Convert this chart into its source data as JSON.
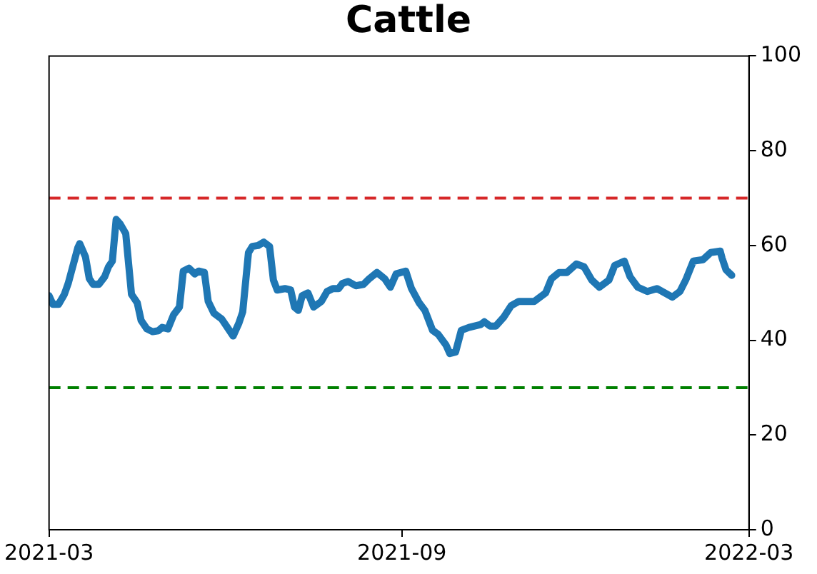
{
  "chart_data": {
    "type": "line",
    "title": "Cattle",
    "x": [
      "2021-03-01",
      "2021-03-03",
      "2021-03-06",
      "2021-03-09",
      "2021-03-11",
      "2021-03-13",
      "2021-03-16",
      "2021-03-17",
      "2021-03-20",
      "2021-03-22",
      "2021-03-24",
      "2021-03-27",
      "2021-03-30",
      "2021-04-01",
      "2021-04-03",
      "2021-04-05",
      "2021-04-07",
      "2021-04-10",
      "2021-04-13",
      "2021-04-16",
      "2021-04-18",
      "2021-04-21",
      "2021-04-24",
      "2021-04-27",
      "2021-04-29",
      "2021-05-02",
      "2021-05-05",
      "2021-05-08",
      "2021-05-10",
      "2021-05-13",
      "2021-05-16",
      "2021-05-18",
      "2021-05-21",
      "2021-05-23",
      "2021-05-26",
      "2021-05-29",
      "2021-05-30",
      "2021-06-02",
      "2021-06-05",
      "2021-06-08",
      "2021-06-10",
      "2021-06-13",
      "2021-06-15",
      "2021-06-18",
      "2021-06-21",
      "2021-06-24",
      "2021-06-26",
      "2021-06-28",
      "2021-07-02",
      "2021-07-05",
      "2021-07-07",
      "2021-07-09",
      "2021-07-11",
      "2021-07-14",
      "2021-07-17",
      "2021-07-21",
      "2021-07-24",
      "2021-07-27",
      "2021-07-30",
      "2021-08-01",
      "2021-08-04",
      "2021-08-08",
      "2021-08-12",
      "2021-08-15",
      "2021-08-19",
      "2021-08-23",
      "2021-08-26",
      "2021-08-29",
      "2021-09-03",
      "2021-09-06",
      "2021-09-10",
      "2021-09-13",
      "2021-09-17",
      "2021-09-20",
      "2021-09-24",
      "2021-09-26",
      "2021-09-29",
      "2021-10-02",
      "2021-10-06",
      "2021-10-12",
      "2021-10-14",
      "2021-10-17",
      "2021-10-20",
      "2021-10-24",
      "2021-10-28",
      "2021-11-01",
      "2021-11-09",
      "2021-11-15",
      "2021-11-18",
      "2021-11-22",
      "2021-11-26",
      "2021-12-01",
      "2021-12-05",
      "2021-12-09",
      "2021-12-13",
      "2021-12-18",
      "2021-12-21",
      "2021-12-26",
      "2021-12-29",
      "2022-01-02",
      "2022-01-07",
      "2022-01-12",
      "2022-01-16",
      "2022-01-20",
      "2022-01-24",
      "2022-01-27",
      "2022-01-31",
      "2022-02-05",
      "2022-02-09",
      "2022-02-14",
      "2022-02-15",
      "2022-02-17",
      "2022-02-20"
    ],
    "series": [
      {
        "color": "#1f77b4",
        "values": [
          49.4,
          47.6,
          47.6,
          49.7,
          52,
          55,
          59.5,
          60.4,
          57.6,
          53,
          51.8,
          51.8,
          53.4,
          55.5,
          56.7,
          65.5,
          64.6,
          62.5,
          49.7,
          47.9,
          44.2,
          42.4,
          41.8,
          42,
          42.7,
          42.4,
          45.4,
          47,
          54.6,
          55.2,
          54,
          54.6,
          54.3,
          48.2,
          45.7,
          44.8,
          44.5,
          42.7,
          40.9,
          43.6,
          46,
          58.5,
          59.8,
          60,
          60.7,
          59.8,
          52.7,
          50.6,
          50.9,
          50.6,
          47,
          46.3,
          49.4,
          50,
          47,
          48.2,
          50.3,
          50.9,
          50.9,
          52,
          52.4,
          51.5,
          51.8,
          53,
          54.3,
          53,
          51.2,
          54,
          54.6,
          50.9,
          47.9,
          46.3,
          42.1,
          41.2,
          39,
          37.2,
          37.5,
          42.1,
          42.7,
          43.3,
          43.9,
          43,
          43,
          44.8,
          47.3,
          48.2,
          48.2,
          50,
          53,
          54.3,
          54.3,
          56.1,
          55.5,
          52.7,
          51.2,
          52.7,
          55.8,
          56.7,
          53.4,
          51.2,
          50.3,
          50.9,
          50,
          49.1,
          50.3,
          52.7,
          56.7,
          57,
          58.5,
          58.8,
          57.3,
          54.9,
          53.7
        ]
      }
    ],
    "xlim": [
      "2021-03-01",
      "2022-03-01"
    ],
    "xticks": [
      {
        "value": "2021-03-01",
        "label": "2021-03"
      },
      {
        "value": "2021-09-01",
        "label": "2021-09"
      },
      {
        "value": "2022-03-01",
        "label": "2022-03"
      }
    ],
    "ylim": [
      0,
      100
    ],
    "yticks": [
      0,
      20,
      40,
      60,
      80,
      100
    ],
    "ref_lines": [
      {
        "axis": "y",
        "value": 70,
        "color": "#d62728",
        "line_style": "dashed"
      },
      {
        "axis": "y",
        "value": 30,
        "color": "#008000",
        "line_style": "dashed"
      }
    ],
    "grid": false,
    "legend": false,
    "marker": "none",
    "line_style": "solid"
  }
}
